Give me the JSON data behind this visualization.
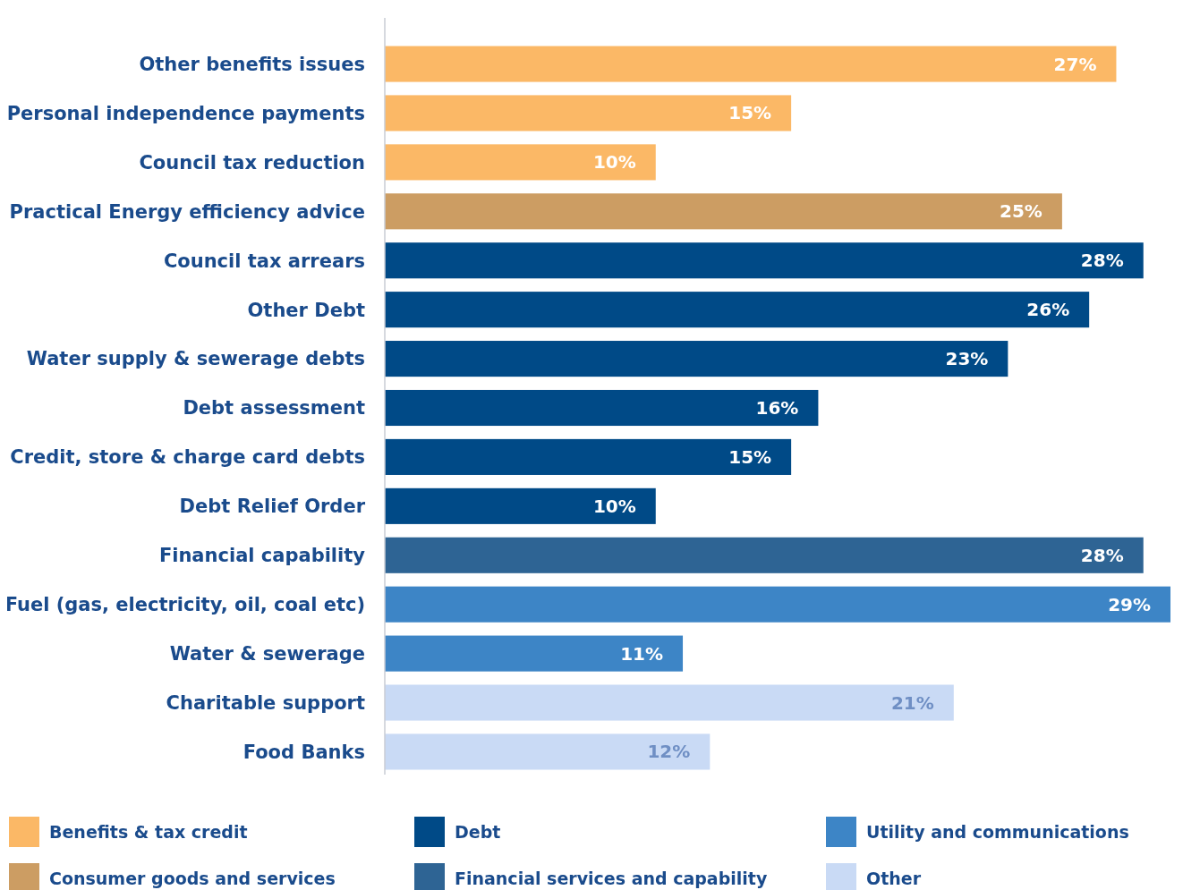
{
  "chart_data": {
    "type": "bar",
    "orientation": "horizontal",
    "legend": "bottom",
    "categories": [
      "Other benefits issues",
      "Personal independence payments",
      "Council tax reduction",
      "Practical Energy efficiency advice",
      "Council tax arrears",
      "Other Debt",
      "Water supply & sewerage debts",
      "Debt assessment",
      "Credit, store & charge card debts",
      "Debt Relief Order",
      "Financial capability",
      "Fuel (gas, electricity, oil, coal etc)",
      "Water & sewerage",
      "Charitable support",
      "Food Banks"
    ],
    "series": [
      {
        "name": "Benefits & tax credit",
        "color": "#fbb866",
        "values": [
          27,
          15,
          10,
          null,
          null,
          null,
          null,
          null,
          null,
          null,
          null,
          null,
          null,
          null,
          null
        ],
        "value_labels": [
          "27%",
          "15%",
          "10%",
          null,
          null,
          null,
          null,
          null,
          null,
          null,
          null,
          null,
          null,
          null,
          null
        ]
      },
      {
        "name": "Consumer goods and services",
        "color": "#cc9d63",
        "values": [
          null,
          null,
          null,
          25,
          null,
          null,
          null,
          null,
          null,
          null,
          null,
          null,
          null,
          null,
          null
        ],
        "value_labels": [
          null,
          null,
          null,
          "25%",
          null,
          null,
          null,
          null,
          null,
          null,
          null,
          null,
          null,
          null,
          null
        ]
      },
      {
        "name": "Debt",
        "color": "#004a87",
        "values": [
          null,
          null,
          null,
          null,
          28,
          26,
          23,
          16,
          15,
          10,
          null,
          null,
          null,
          null,
          null
        ],
        "value_labels": [
          null,
          null,
          null,
          null,
          "28%",
          "26%",
          "23%",
          "16%",
          "15%",
          "10%",
          null,
          null,
          null,
          null,
          null
        ]
      },
      {
        "name": "Financial services and capability",
        "color": "#2e6494",
        "values": [
          null,
          null,
          null,
          null,
          null,
          null,
          null,
          null,
          null,
          null,
          28,
          null,
          null,
          null,
          null
        ],
        "value_labels": [
          null,
          null,
          null,
          null,
          null,
          null,
          null,
          null,
          null,
          null,
          "28%",
          null,
          null,
          null,
          null
        ]
      },
      {
        "name": "Utility and communications",
        "color": "#3d85c6",
        "values": [
          null,
          null,
          null,
          null,
          null,
          null,
          null,
          null,
          null,
          null,
          null,
          29,
          11,
          null,
          null
        ],
        "value_labels": [
          null,
          null,
          null,
          null,
          null,
          null,
          null,
          null,
          null,
          null,
          null,
          "29%",
          "11%",
          null,
          null
        ]
      },
      {
        "name": "Other",
        "color": "#c9daf5",
        "values": [
          null,
          null,
          null,
          null,
          null,
          null,
          null,
          null,
          null,
          null,
          null,
          null,
          null,
          21,
          12
        ],
        "value_labels": [
          null,
          null,
          null,
          null,
          null,
          null,
          null,
          null,
          null,
          null,
          null,
          null,
          null,
          "21%",
          "12%"
        ]
      }
    ]
  }
}
